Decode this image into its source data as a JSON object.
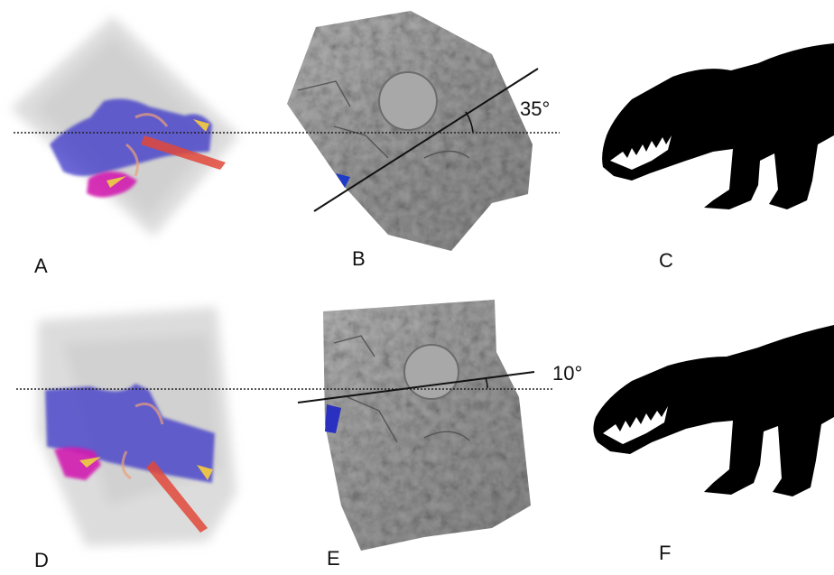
{
  "panels": {
    "A": {
      "label": "A"
    },
    "B": {
      "label": "B",
      "angle": "35°"
    },
    "C": {
      "label": "C"
    },
    "D": {
      "label": "D"
    },
    "E": {
      "label": "E",
      "angle": "10°"
    },
    "F": {
      "label": "F"
    }
  },
  "colors": {
    "silhouette": "#000000",
    "teeth": "#ffffff",
    "volume_haze": "#cfcfcf",
    "blue_structure": "#3a36c8",
    "magenta_structure": "#d21fb0",
    "red_structure": "#e0483a",
    "yellow_structure": "#e8c24a",
    "bone_surface": "#9a9a9a"
  }
}
